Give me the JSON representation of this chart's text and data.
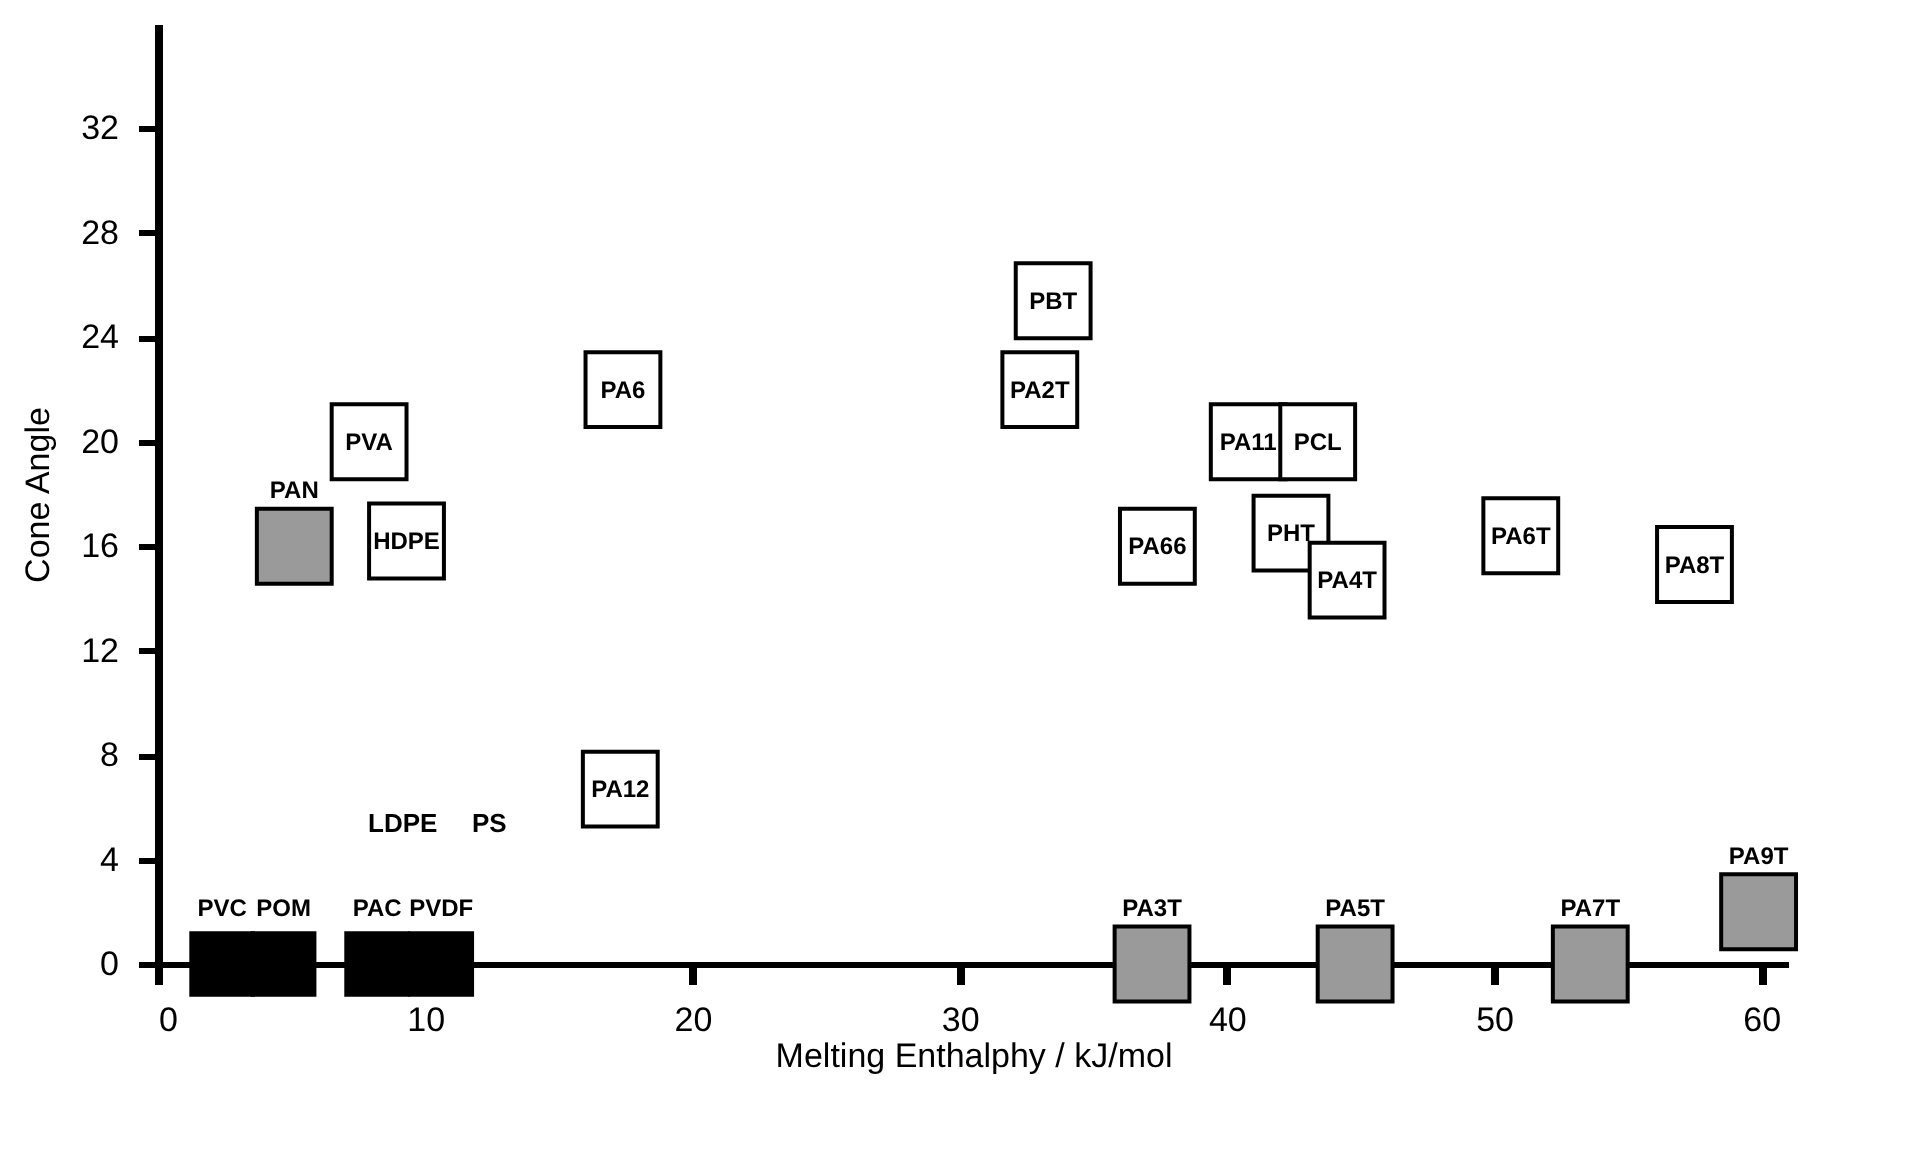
{
  "chart_data": {
    "type": "scatter",
    "xlabel": "Melting Enthalphy    / kJ/mol",
    "ylabel": "Cone Angle",
    "xlim": [
      0,
      61
    ],
    "ylim": [
      0,
      36
    ],
    "xticks": [
      0,
      10,
      20,
      30,
      40,
      50,
      60
    ],
    "yticks": [
      0,
      4,
      8,
      12,
      16,
      20,
      24,
      28,
      32
    ],
    "grid": false,
    "marker": "square",
    "series": [
      {
        "color": "#000000",
        "x": [
          2.4,
          4.7,
          8.2,
          10.6
        ],
        "values": [
          0,
          0,
          0,
          0
        ]
      },
      {
        "color": "#9a9a9a",
        "x": [
          5.1,
          37.2,
          44.8,
          53.6,
          59.9
        ],
        "values": [
          16,
          0,
          0,
          0,
          2
        ]
      },
      {
        "color": "#ffffff",
        "x": [
          7.9,
          9.3,
          17.4,
          17.3,
          33.5,
          33,
          40.8,
          43.4,
          42.4,
          44.5,
          37.4,
          51,
          57.5
        ],
        "values": [
          20,
          16.2,
          22,
          6.7,
          25.4,
          22,
          20,
          20,
          16.5,
          14.7,
          16,
          16.4,
          15.3
        ]
      }
    ],
    "annotations": [
      {
        "text": "PVC",
        "x": 2.4,
        "y": 0
      },
      {
        "text": "POM",
        "x": 4.7,
        "y": 0
      },
      {
        "text": "PAC",
        "x": 8.2,
        "y": 0
      },
      {
        "text": "PVDF",
        "x": 10.6,
        "y": 0
      },
      "LDPE",
      "PS",
      {
        "text": "PAN",
        "x": 5.1,
        "y": 16
      },
      {
        "text": "PA3T",
        "x": 37.2,
        "y": 0
      },
      {
        "text": "PA5T",
        "x": 44.8,
        "y": 0
      },
      {
        "text": "PA7T",
        "x": 53.6,
        "y": 0
      },
      {
        "text": "PA9T",
        "x": 59.9,
        "y": 2
      },
      {
        "text": "PVA",
        "x": 7.9,
        "y": 20
      },
      {
        "text": "HDPE",
        "x": 9.3,
        "y": 16.2
      },
      {
        "text": "PA6",
        "x": 17.4,
        "y": 22
      },
      {
        "text": "PA12",
        "x": 17.3,
        "y": 6.7
      },
      {
        "text": "PBT",
        "x": 33.5,
        "y": 25.4
      },
      {
        "text": "PA2T",
        "x": 33,
        "y": 22
      },
      {
        "text": "PA11",
        "x": 40.8,
        "y": 20
      },
      {
        "text": "PCL",
        "x": 43.4,
        "y": 20
      },
      {
        "text": "PHT",
        "x": 42.4,
        "y": 16.5
      },
      {
        "text": "PA4T",
        "x": 44.5,
        "y": 14.7
      },
      {
        "text": "PA66",
        "x": 37.4,
        "y": 16
      },
      {
        "text": "PA6T",
        "x": 51,
        "y": 16.4
      },
      {
        "text": "PA8T",
        "x": 57.5,
        "y": 15.3
      }
    ]
  }
}
